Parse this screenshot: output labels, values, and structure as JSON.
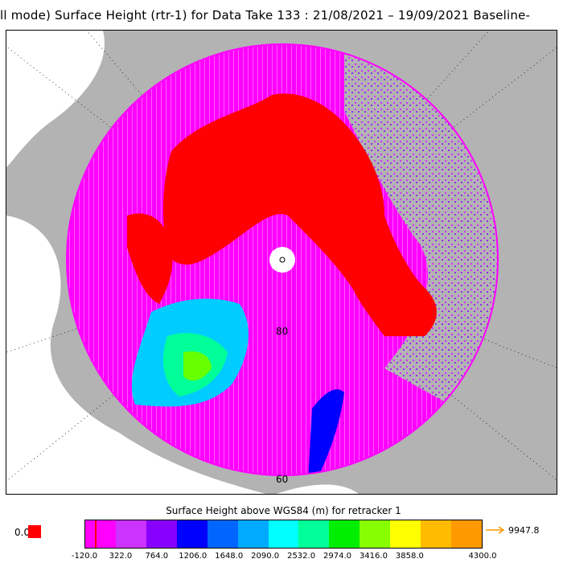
{
  "title": "ll mode) Surface Height (rtr-1) for Data Take 133 : 21/08/2021 – 19/09/2021 Baseline-",
  "map": {
    "projection": "north-polar-stereographic",
    "lat_labels": [
      "80",
      "60"
    ],
    "colors": {
      "land": "#b3b3b3",
      "ocean": "#ffffff",
      "sea_ice_red": "#ff0000",
      "magenta": "#ff00ff",
      "violet": "#b000e0",
      "pole_hole": "#ffffff"
    }
  },
  "legend": {
    "title": "Surface Height above WGS84 (m) for retracker 1",
    "zero_label": "0.0",
    "zero_color": "#ff0000",
    "overflow_value": "9947.8",
    "overflow_color": "#ff9900",
    "segment_colors": [
      "#ff00ff",
      "#cc33ff",
      "#8800ff",
      "#0000ff",
      "#0066ff",
      "#00aaff",
      "#00ffff",
      "#00ff99",
      "#00ee00",
      "#88ff00",
      "#ffff00",
      "#ffbb00",
      "#ff9900"
    ],
    "tick_labels": [
      "-120.0",
      "322.0",
      "764.0",
      "1206.0",
      "1648.0",
      "2090.0",
      "2532.0",
      "2974.0",
      "3416.0",
      "3858.0",
      "4300.0"
    ]
  }
}
